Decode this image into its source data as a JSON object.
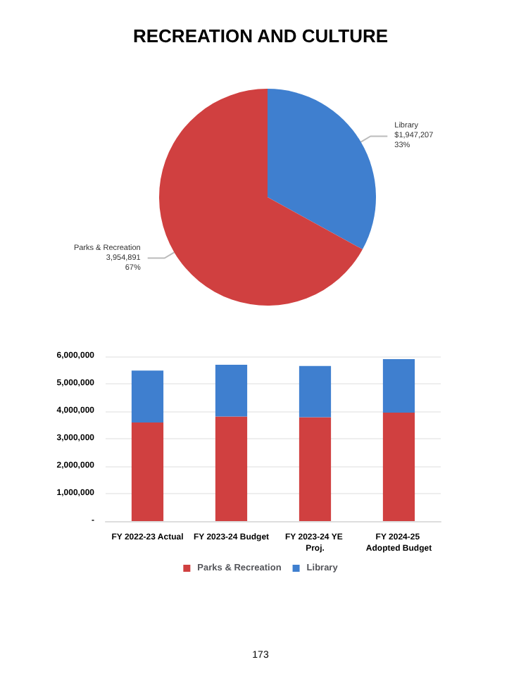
{
  "chart_data": [
    {
      "type": "pie",
      "title": "RECREATION AND CULTURE",
      "categories": [
        "Library",
        "Parks & Recreation"
      ],
      "values": [
        1947207,
        3954891
      ],
      "colors": [
        "#3f7fcf",
        "#d04040"
      ],
      "value_labels": [
        "$1,947,207\n33%",
        "3,954,891\n67%"
      ],
      "legend": false
    },
    {
      "type": "bar",
      "stacked": true,
      "categories": [
        "FY 2022-23 Actual",
        "FY 2023-24 Budget",
        "FY 2023-24 YE Proj.",
        "FY 2024-25 Adopted Budget"
      ],
      "series": [
        {
          "name": "Parks & Recreation",
          "color": "#d04040",
          "values": [
            3590000,
            3810000,
            3780000,
            3950000
          ]
        },
        {
          "name": "Library",
          "color": "#3f7fcf",
          "values": [
            1890000,
            1880000,
            1870000,
            1950000
          ]
        }
      ],
      "ylim": [
        0,
        6000000
      ],
      "yticks": [
        {
          "value": 0,
          "label": "-"
        },
        {
          "value": 1000000,
          "label": "1,000,000"
        },
        {
          "value": 2000000,
          "label": "2,000,000"
        },
        {
          "value": 3000000,
          "label": "3,000,000"
        },
        {
          "value": 4000000,
          "label": "4,000,000"
        },
        {
          "value": 5000000,
          "label": "5,000,000"
        },
        {
          "value": 6000000,
          "label": "6,000,000"
        }
      ],
      "grid": "y",
      "legend": "bottom",
      "annotations": [
        "173"
      ]
    }
  ]
}
